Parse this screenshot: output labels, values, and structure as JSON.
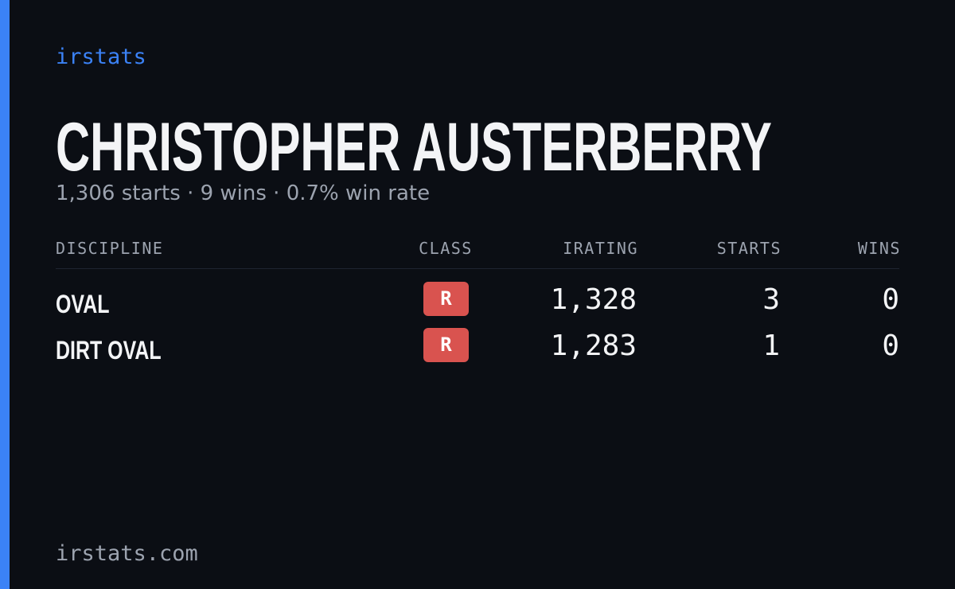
{
  "brand": "irstats",
  "driver": {
    "name": "CHRISTOPHER AUSTERBERRY",
    "summary": "1,306 starts · 9 wins · 0.7% win rate"
  },
  "table": {
    "headers": [
      "DISCIPLINE",
      "CLASS",
      "IRATING",
      "STARTS",
      "WINS"
    ],
    "rows": [
      [
        "OVAL",
        "R",
        "1,328",
        "3",
        "0"
      ],
      [
        "DIRT OVAL",
        "R",
        "1,283",
        "1",
        "0"
      ]
    ]
  },
  "footer": "irstats.com"
}
